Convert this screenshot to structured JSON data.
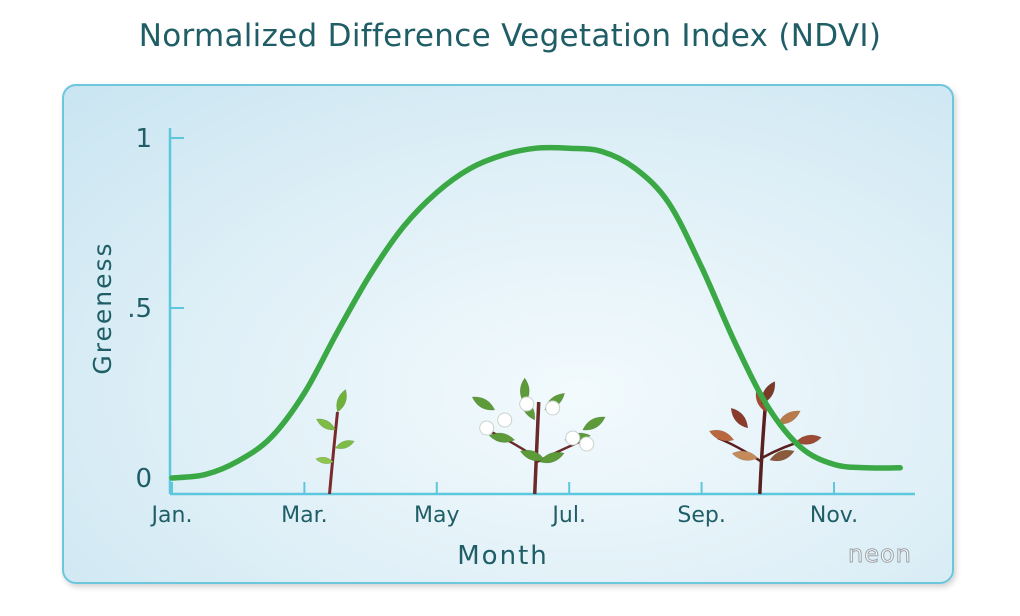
{
  "title": "Normalized Difference Vegetation Index (NDVI)",
  "logo_text": "neon",
  "colors": {
    "curve": "#3aa845",
    "axis": "#5cc7dd",
    "text": "#1f5e66",
    "panel_border": "#6cc6dc"
  },
  "chart_data": {
    "type": "line",
    "title": "Normalized Difference Vegetation Index (NDVI)",
    "xlabel": "Month",
    "ylabel": "Greeness",
    "x_ticks": [
      "Jan.",
      "Mar.",
      "May",
      "Jul.",
      "Sep.",
      "Nov."
    ],
    "y_ticks": [
      "0",
      ".5",
      "1"
    ],
    "y_tick_values": [
      0,
      0.5,
      1
    ],
    "ylim": [
      0,
      1
    ],
    "xlim": [
      1,
      12.5
    ],
    "grid": false,
    "series": [
      {
        "x": [
          1.0,
          1.5,
          2.0,
          2.5,
          3.0,
          3.5,
          4.0,
          4.5,
          5.0,
          5.5,
          6.0,
          6.5,
          7.0,
          7.5,
          8.0,
          8.5,
          9.0,
          9.5,
          10.0,
          10.5,
          11.0,
          11.5,
          12.0
        ],
        "values": [
          0.0,
          0.01,
          0.05,
          0.12,
          0.25,
          0.43,
          0.6,
          0.74,
          0.84,
          0.91,
          0.95,
          0.97,
          0.97,
          0.96,
          0.91,
          0.81,
          0.62,
          0.4,
          0.21,
          0.09,
          0.04,
          0.03,
          0.03
        ]
      }
    ],
    "plants": [
      {
        "month": 3.5,
        "stage": "young"
      },
      {
        "month": 6.6,
        "stage": "flowering"
      },
      {
        "month": 10.0,
        "stage": "autumn"
      }
    ]
  }
}
